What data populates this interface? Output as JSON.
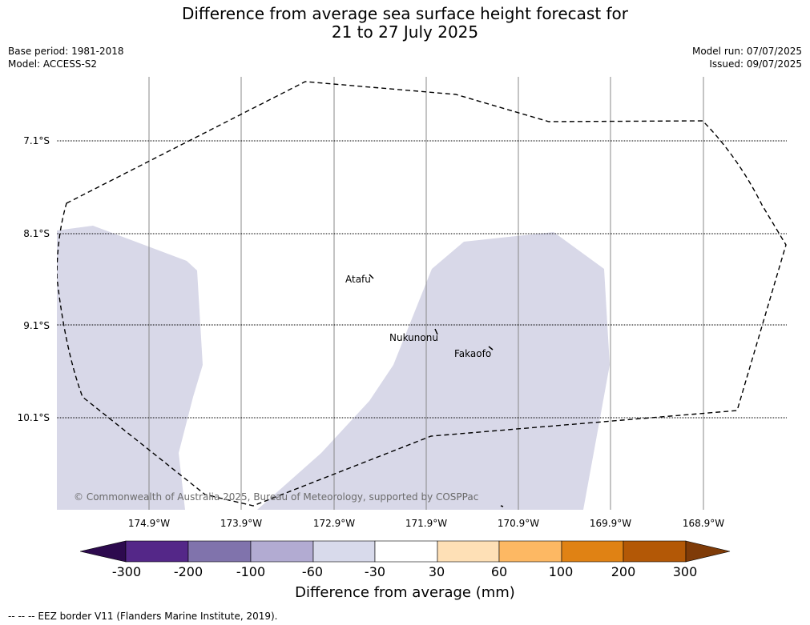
{
  "title": {
    "line1": "Difference from average sea surface height forecast for",
    "line2": "21 to 27 July 2025"
  },
  "meta": {
    "base_period": "Base period: 1981-2018",
    "model": "Model: ACCESS-S2",
    "model_run": "Model run: 07/07/2025",
    "issued": "Issued: 09/07/2025"
  },
  "map": {
    "lat_labels": [
      "7.1°S",
      "8.1°S",
      "9.1°S",
      "10.1°S"
    ],
    "lon_labels": [
      "174.9°W",
      "173.9°W",
      "172.9°W",
      "171.9°W",
      "170.9°W",
      "169.9°W",
      "168.9°W"
    ],
    "places": [
      "Atafu",
      "Nukunonu",
      "Fakaofo"
    ],
    "anomaly_fill_color": "#d8d8e8",
    "anomaly_fill_class": "-60 to -30",
    "copyright": "© Commonwealth of Australia 2025, Bureau of Meteorology, supported by COSPPac"
  },
  "colorbar": {
    "ticks": [
      "-300",
      "-200",
      "-100",
      "-60",
      "-30",
      "30",
      "60",
      "100",
      "200",
      "300"
    ],
    "colors": [
      "#2d0a4e",
      "#542788",
      "#8073ac",
      "#b2abd2",
      "#d8daeb",
      "#ffffff",
      "#fee0b6",
      "#fdb863",
      "#e08214",
      "#b35806",
      "#7f3b08"
    ],
    "label": "Difference from average (mm)"
  },
  "legend": {
    "eez": "--  --  -- EEZ border V11 (Flanders Marine Institute, 2019)."
  }
}
